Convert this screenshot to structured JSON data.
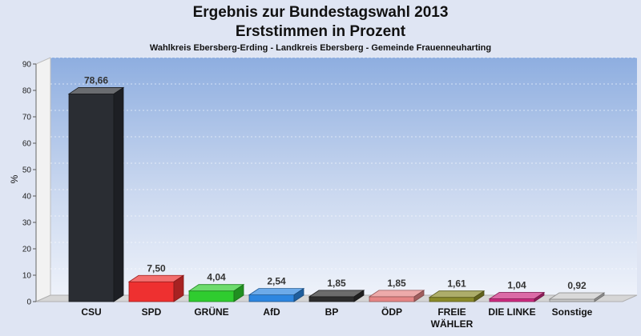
{
  "chart_data": {
    "type": "bar",
    "title": "Ergebnis zur Bundestagswahl 2013",
    "title_line2": "Erststimmen in Prozent",
    "subtitle": "Wahlkreis Ebersberg-Erding - Landkreis Ebersberg - Gemeinde Frauenneuharting",
    "ylabel": "%",
    "ylim": [
      0,
      90
    ],
    "yticks": [
      0,
      10,
      20,
      30,
      40,
      50,
      60,
      70,
      80,
      90
    ],
    "categories": [
      "CSU",
      "SPD",
      "GRÜNE",
      "AfD",
      "BP",
      "ÖDP",
      "FREIE WÄHLER",
      "DIE LINKE",
      "Sonstige"
    ],
    "values": [
      78.66,
      7.5,
      4.04,
      2.54,
      1.85,
      1.85,
      1.61,
      1.04,
      0.92
    ],
    "value_labels": [
      "78,66",
      "7,50",
      "4,04",
      "2,54",
      "1,85",
      "1,85",
      "1,61",
      "1,04",
      "0,92"
    ],
    "colors": [
      "#2a2d33",
      "#ee3030",
      "#2fcc2f",
      "#2d86e0",
      "#2d2d2d",
      "#e58585",
      "#8a8a2a",
      "#cc2a80",
      "#c8c8c8"
    ]
  }
}
